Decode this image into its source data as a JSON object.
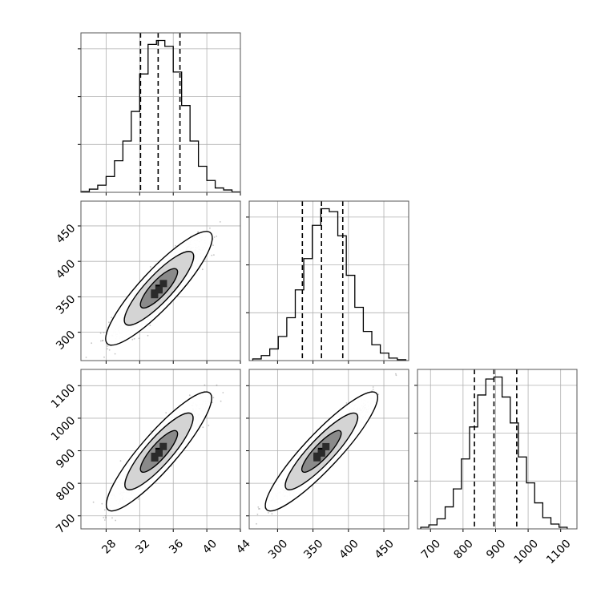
{
  "chart_data": {
    "type": "corner",
    "parameters": [
      {
        "ticks": [
          28,
          32,
          36,
          40,
          44
        ],
        "tick_labels": [
          "28",
          "32",
          "36",
          "40",
          "44"
        ],
        "range": [
          25,
          44
        ],
        "quantiles": [
          32.1,
          34.2,
          36.8
        ]
      },
      {
        "ticks": [
          300,
          350,
          400,
          450
        ],
        "tick_labels": [
          "300",
          "350",
          "400",
          "450"
        ],
        "range": [
          260,
          485
        ],
        "quantiles": [
          335,
          362,
          392
        ]
      },
      {
        "ticks": [
          700,
          800,
          900,
          1000,
          1100
        ],
        "tick_labels": [
          "700",
          "800",
          "900",
          "1000",
          "1100"
        ],
        "range": [
          660,
          1150
        ],
        "quantiles": [
          835,
          895,
          965
        ]
      }
    ],
    "histograms": [
      {
        "bins": [
          25,
          26,
          27,
          28,
          29,
          30,
          31,
          32,
          33,
          34,
          35,
          36,
          37,
          38,
          39,
          40,
          41,
          42,
          43,
          44
        ],
        "counts": [
          2,
          8,
          18,
          40,
          80,
          130,
          205,
          300,
          375,
          385,
          370,
          305,
          220,
          130,
          66,
          30,
          11,
          6,
          1
        ]
      },
      {
        "bins": [
          265,
          277,
          289,
          301,
          313,
          325,
          337,
          349,
          361,
          373,
          385,
          397,
          409,
          421,
          433,
          445,
          457,
          469,
          481
        ],
        "counts": [
          4,
          12,
          28,
          58,
          103,
          170,
          245,
          325,
          365,
          358,
          300,
          205,
          128,
          70,
          38,
          18,
          6,
          2
        ]
      },
      {
        "bins": [
          670,
          695,
          720,
          745,
          770,
          795,
          820,
          845,
          870,
          895,
          920,
          945,
          970,
          995,
          1020,
          1045,
          1070,
          1095,
          1120
        ],
        "counts": [
          4,
          10,
          25,
          55,
          100,
          175,
          255,
          335,
          375,
          380,
          330,
          265,
          180,
          115,
          65,
          28,
          12,
          4
        ]
      }
    ],
    "pairs": [
      {
        "x_param": 0,
        "y_param": 1,
        "corr": 0.9,
        "center": [
          34.3,
          362
        ],
        "sd": [
          2.2,
          28
        ],
        "levels": [
          {
            "sx": 1.35,
            "sy": 0.75
          },
          {
            "sx": 2.55,
            "sy": 1.25
          },
          {
            "sx": 3.95,
            "sy": 1.75
          }
        ]
      },
      {
        "x_param": 0,
        "y_param": 2,
        "corr": 0.92,
        "center": [
          34.3,
          898
        ],
        "sd": [
          2.2,
          65
        ],
        "levels": [
          {
            "sx": 1.35,
            "sy": 0.7
          },
          {
            "sx": 2.5,
            "sy": 1.2
          },
          {
            "sx": 3.9,
            "sy": 1.65
          }
        ]
      },
      {
        "x_param": 1,
        "y_param": 2,
        "corr": 0.95,
        "center": [
          362,
          898
        ],
        "sd": [
          28,
          65
        ],
        "levels": [
          {
            "sx": 1.35,
            "sy": 0.65
          },
          {
            "sx": 2.5,
            "sy": 1.1
          },
          {
            "sx": 3.9,
            "sy": 1.55
          }
        ]
      }
    ],
    "hist_yticks": 3,
    "grid": true,
    "colors": {
      "line": "#000000",
      "grid": "#b0b0b0",
      "points": "#555555"
    }
  }
}
